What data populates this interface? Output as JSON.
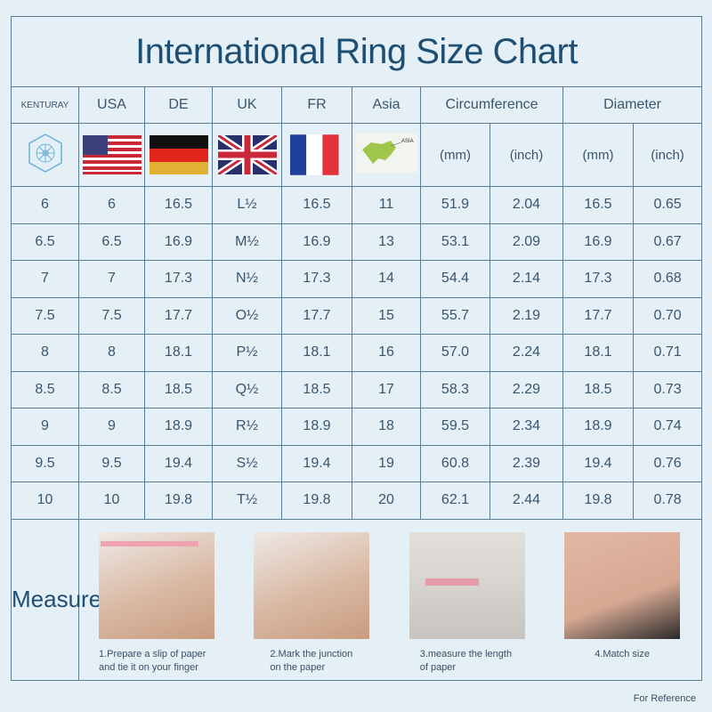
{
  "title": "International Ring Size Chart",
  "headers": {
    "brand": "KENTURAY",
    "usa": "USA",
    "de": "DE",
    "uk": "UK",
    "fr": "FR",
    "asia": "Asia",
    "circumference": "Circumference",
    "diameter": "Diameter"
  },
  "units": {
    "circ_mm": "(mm)",
    "circ_inch": "(inch)",
    "dia_mm": "(mm)",
    "dia_inch": "(inch)",
    "asia_map_label": "ASIA"
  },
  "icons": {
    "brand": "kenturay-logo-icon",
    "usa": "us-flag-icon",
    "de": "german-flag-icon",
    "uk": "uk-flag-icon",
    "fr": "french-flag-icon",
    "asia": "asia-map-icon"
  },
  "rows": [
    [
      "6",
      "6",
      "16.5",
      "L½",
      "16.5",
      "11",
      "51.9",
      "2.04",
      "16.5",
      "0.65"
    ],
    [
      "6.5",
      "6.5",
      "16.9",
      "M½",
      "16.9",
      "13",
      "53.1",
      "2.09",
      "16.9",
      "0.67"
    ],
    [
      "7",
      "7",
      "17.3",
      "N½",
      "17.3",
      "14",
      "54.4",
      "2.14",
      "17.3",
      "0.68"
    ],
    [
      "7.5",
      "7.5",
      "17.7",
      "O½",
      "17.7",
      "15",
      "55.7",
      "2.19",
      "17.7",
      "0.70"
    ],
    [
      "8",
      "8",
      "18.1",
      "P½",
      "18.1",
      "16",
      "57.0",
      "2.24",
      "18.1",
      "0.71"
    ],
    [
      "8.5",
      "8.5",
      "18.5",
      "Q½",
      "18.5",
      "17",
      "58.3",
      "2.29",
      "18.5",
      "0.73"
    ],
    [
      "9",
      "9",
      "18.9",
      "R½",
      "18.9",
      "18",
      "59.5",
      "2.34",
      "18.9",
      "0.74"
    ],
    [
      "9.5",
      "9.5",
      "19.4",
      "S½",
      "19.4",
      "19",
      "60.8",
      "2.39",
      "19.4",
      "0.76"
    ],
    [
      "10",
      "10",
      "19.8",
      "T½",
      "19.8",
      "20",
      "62.1",
      "2.44",
      "19.8",
      "0.78"
    ]
  ],
  "measure": {
    "label": "Measure",
    "steps": [
      {
        "line1": "1.Prepare a slip of  paper",
        "line2": "and tie it on your finger"
      },
      {
        "line1": "2.Mark the junction",
        "line2": "on the paper"
      },
      {
        "line1": "3.measure the length",
        "line2": "of paper"
      },
      {
        "line1": "4.Match size",
        "line2": ""
      }
    ]
  },
  "footer": "For Reference",
  "colors": {
    "background": "#e4eff6",
    "title": "#1f4e73",
    "border": "#5d7d92"
  }
}
